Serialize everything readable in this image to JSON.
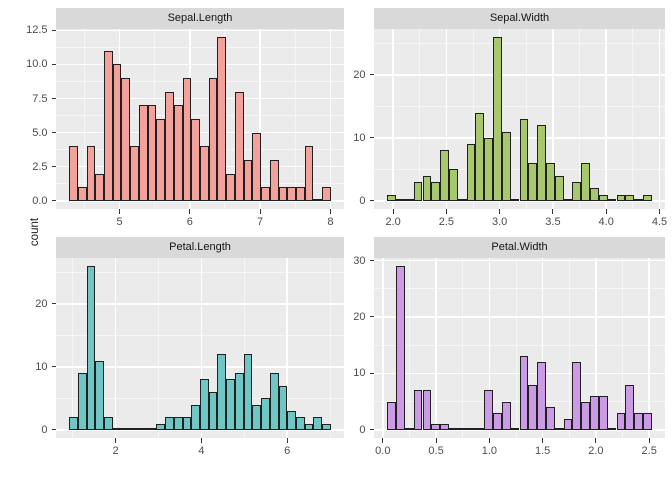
{
  "figure": {
    "y_axis_title": "count",
    "background": "#FFFFFF",
    "panel_background": "#EBEBEB",
    "strip_background": "#D9D9D9",
    "grid_color": "#FFFFFF",
    "bar_stroke": "#202020",
    "tick_color": "#333333",
    "axis_text_color": "#4D4D4D",
    "strip_text_color": "#141414"
  },
  "chart_data": [
    {
      "type": "histogram",
      "panel": "top-left",
      "title": "Sepal.Length",
      "fill": "#F3A19B",
      "bins": 30,
      "bin_start": 4.2828,
      "bin_width": 0.12414,
      "counts": [
        4,
        1,
        4,
        2,
        11,
        10,
        9,
        4,
        7,
        7,
        6,
        8,
        7,
        9,
        6,
        4,
        9,
        12,
        2,
        8,
        3,
        5,
        1,
        3,
        1,
        1,
        1,
        4,
        0,
        1
      ],
      "x_ticks": [
        5,
        6,
        7,
        8
      ],
      "x_tick_labels": [
        "5",
        "6",
        "7",
        "8"
      ],
      "y_ticks": [
        0,
        2.5,
        5,
        7.5,
        10,
        12.5
      ],
      "y_tick_labels": [
        "0.0",
        "2.5",
        "5.0",
        "7.5",
        "10.0",
        "12.5"
      ]
    },
    {
      "type": "histogram",
      "panel": "top-right",
      "title": "Sepal.Width",
      "fill": "#A8C870",
      "bins": 30,
      "bin_start": 1.9448,
      "bin_width": 0.082759,
      "counts": [
        1,
        0,
        0,
        3,
        4,
        3,
        8,
        5,
        0,
        9,
        14,
        10,
        26,
        11,
        0,
        13,
        6,
        12,
        6,
        4,
        0,
        3,
        6,
        2,
        1,
        0,
        1,
        1,
        0,
        1
      ],
      "x_ticks": [
        2.0,
        2.5,
        3.0,
        3.5,
        4.0,
        4.5
      ],
      "x_tick_labels": [
        "2.0",
        "2.5",
        "3.0",
        "3.5",
        "4.0",
        "4.5"
      ],
      "y_ticks": [
        0,
        10,
        20
      ],
      "y_tick_labels": [
        "0",
        "10",
        "20"
      ]
    },
    {
      "type": "histogram",
      "panel": "bottom-left",
      "title": "Petal.Length",
      "fill": "#70C6C4",
      "bins": 30,
      "bin_start": 0.9155,
      "bin_width": 0.203448,
      "counts": [
        2,
        9,
        26,
        11,
        2,
        0,
        0,
        0,
        0,
        0,
        1,
        2,
        2,
        2,
        4,
        8,
        6,
        12,
        8,
        9,
        12,
        4,
        5,
        9,
        7,
        3,
        2,
        1,
        2,
        1
      ],
      "x_ticks": [
        2,
        4,
        6
      ],
      "x_tick_labels": [
        "2",
        "4",
        "6"
      ],
      "y_ticks": [
        0,
        10,
        20
      ],
      "y_tick_labels": [
        "0",
        "10",
        "20"
      ]
    },
    {
      "type": "histogram",
      "panel": "bottom-right",
      "title": "Petal.Width",
      "fill": "#CB9CE5",
      "bins": 30,
      "bin_start": 0.0414,
      "bin_width": 0.082759,
      "counts": [
        5,
        29,
        0,
        7,
        7,
        1,
        1,
        0,
        0,
        0,
        0,
        7,
        3,
        5,
        0,
        13,
        8,
        12,
        4,
        0,
        2,
        12,
        5,
        6,
        6,
        0,
        3,
        8,
        3,
        3
      ],
      "x_ticks": [
        0.0,
        0.5,
        1.0,
        1.5,
        2.0,
        2.5
      ],
      "x_tick_labels": [
        "0.0",
        "0.5",
        "1.0",
        "1.5",
        "2.0",
        "2.5"
      ],
      "y_ticks": [
        0,
        10,
        20,
        30
      ],
      "y_tick_labels": [
        "0",
        "10",
        "20",
        "30"
      ]
    }
  ]
}
